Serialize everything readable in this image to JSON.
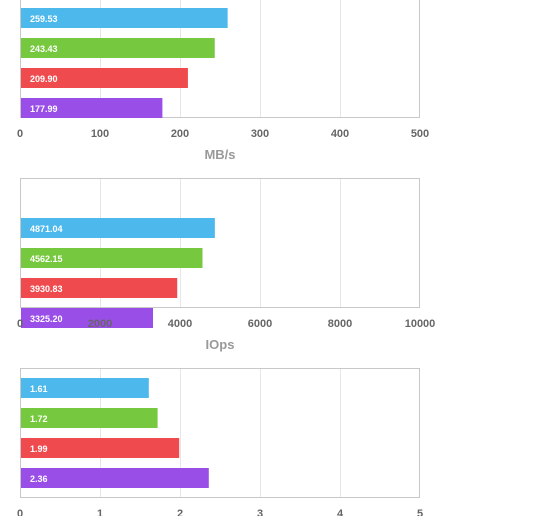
{
  "chart_data": [
    {
      "type": "bar",
      "orientation": "horizontal",
      "values": [
        259.53,
        243.43,
        209.9,
        177.99
      ],
      "data_labels": [
        "259.53",
        "243.43",
        "209.90",
        "177.99"
      ],
      "colors": [
        "#4db8eb",
        "#76c83e",
        "#ef4b4f",
        "#9a4ee8"
      ],
      "xlim": [
        0,
        500
      ],
      "ticks": [
        "0",
        "100",
        "200",
        "300",
        "400",
        "500"
      ],
      "xlabel": "MB/s",
      "grid": true
    },
    {
      "type": "bar",
      "orientation": "horizontal",
      "values": [
        4871.04,
        4562.15,
        3930.83,
        3325.2
      ],
      "data_labels": [
        "4871.04",
        "4562.15",
        "3930.83",
        "3325.20"
      ],
      "colors": [
        "#4db8eb",
        "#76c83e",
        "#ef4b4f",
        "#9a4ee8"
      ],
      "xlim": [
        0,
        10000
      ],
      "ticks": [
        "0",
        "2000",
        "4000",
        "6000",
        "8000",
        "10000"
      ],
      "xlabel": "IOps",
      "grid": true
    },
    {
      "type": "bar",
      "orientation": "horizontal",
      "values": [
        1.61,
        1.72,
        1.99,
        2.36
      ],
      "data_labels": [
        "1.61",
        "1.72",
        "1.99",
        "2.36"
      ],
      "colors": [
        "#4db8eb",
        "#76c83e",
        "#ef4b4f",
        "#9a4ee8"
      ],
      "xlim": [
        0,
        5
      ],
      "ticks": [
        "0",
        "1",
        "2",
        "3",
        "4",
        "5"
      ],
      "xlabel": "",
      "grid": true
    }
  ]
}
